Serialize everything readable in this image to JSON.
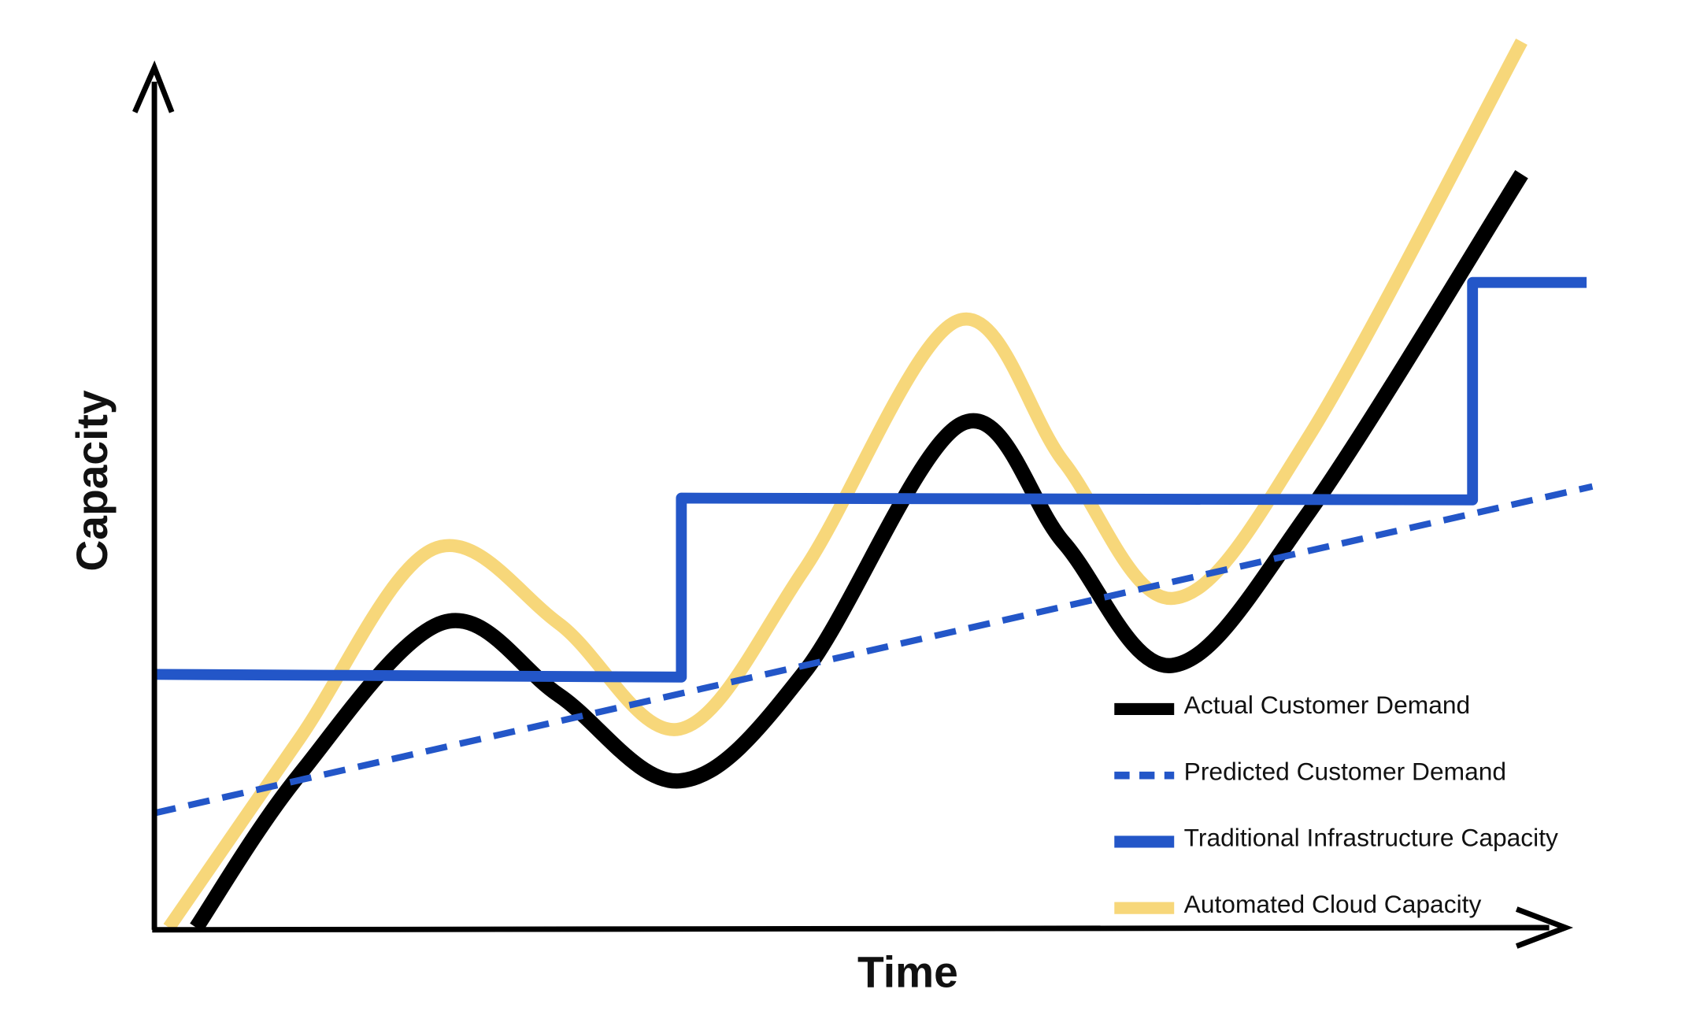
{
  "chart_data": {
    "type": "line",
    "x_label": "Time",
    "y_label": "Capacity",
    "xlim": [
      0,
      100
    ],
    "ylim": [
      0,
      100
    ],
    "series": [
      {
        "name": "Actual Customer Demand",
        "color": "#000000",
        "style": "solid",
        "smooth": true,
        "x": [
          2.9,
          10,
          20,
          28,
          36.4,
          45,
          55.9,
          63,
          70.5,
          80,
          94.7
        ],
        "values": [
          0,
          17,
          34.1,
          26,
          16.4,
          28.5,
          56.3,
          43,
          29.3,
          46.5,
          84.2
        ]
      },
      {
        "name": "Predicted Customer Demand",
        "color": "#2356c8",
        "style": "dashed",
        "smooth": false,
        "x": [
          0,
          99.6
        ],
        "values": [
          12.8,
          49.3
        ]
      },
      {
        "name": "Traditional Infrastructure Capacity",
        "color": "#2356c8",
        "style": "solid",
        "smooth": false,
        "x": [
          0,
          36.5,
          36.5,
          91.3,
          91.3,
          99.2
        ],
        "values": [
          28.3,
          28.0,
          48.0,
          47.8,
          72.1,
          72.1
        ]
      },
      {
        "name": "Automated Cloud Capacity",
        "color": "#f7d77a",
        "style": "solid",
        "smooth": true,
        "x": [
          1,
          10,
          19.3,
          28,
          36.4,
          45,
          55.6,
          63,
          70.6,
          80,
          94.7
        ],
        "values": [
          0,
          21,
          42.3,
          34,
          22.2,
          40,
          67.8,
          52,
          36.8,
          55,
          99.0
        ]
      }
    ]
  }
}
